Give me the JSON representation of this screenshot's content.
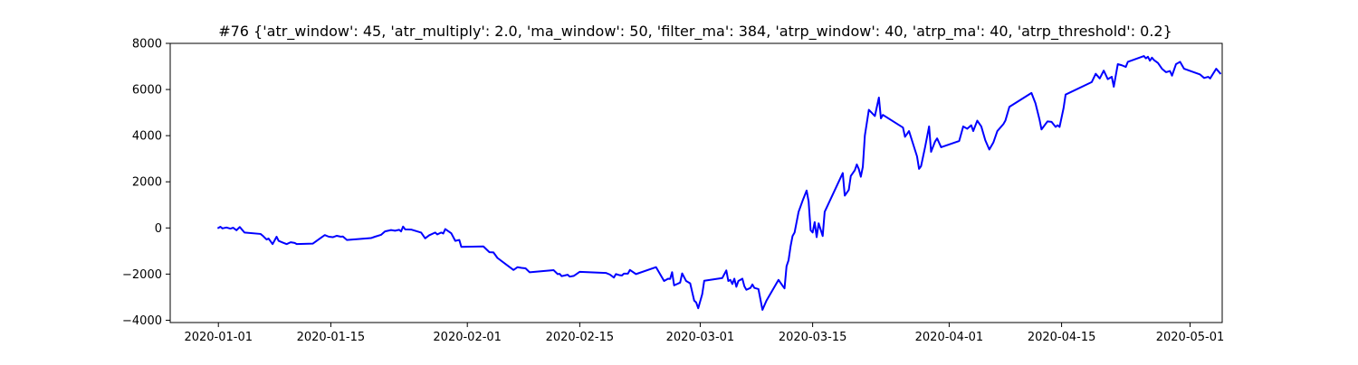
{
  "chart_data": {
    "type": "line",
    "title": "#76 {'atr_window': 45, 'atr_multiply': 2.0, 'ma_window': 50, 'filter_ma': 384, 'atrp_window': 40, 'atrp_ma': 40, 'atrp_threshold': 0.2}",
    "xlabel": "",
    "ylabel": "",
    "x_type": "date",
    "xlim": [
      "2019-12-26",
      "2020-05-05"
    ],
    "ylim": [
      -4100,
      8000
    ],
    "grid": false,
    "legend": "none",
    "x_ticks": [
      {
        "value": "2020-01-01",
        "label": "2020-01-01"
      },
      {
        "value": "2020-01-15",
        "label": "2020-01-15"
      },
      {
        "value": "2020-02-01",
        "label": "2020-02-01"
      },
      {
        "value": "2020-02-15",
        "label": "2020-02-15"
      },
      {
        "value": "2020-03-01",
        "label": "2020-03-01"
      },
      {
        "value": "2020-03-15",
        "label": "2020-03-15"
      },
      {
        "value": "2020-04-01",
        "label": "2020-04-01"
      },
      {
        "value": "2020-04-15",
        "label": "2020-04-15"
      },
      {
        "value": "2020-05-01",
        "label": "2020-05-01"
      }
    ],
    "y_ticks": [
      {
        "value": -4000,
        "label": "−4000"
      },
      {
        "value": -2000,
        "label": "−2000"
      },
      {
        "value": 0,
        "label": "0"
      },
      {
        "value": 2000,
        "label": "2000"
      },
      {
        "value": 4000,
        "label": "4000"
      },
      {
        "value": 6000,
        "label": "6000"
      },
      {
        "value": 8000,
        "label": "8000"
      }
    ],
    "series": [
      {
        "color": "#0000ff",
        "points": [
          [
            "2020-01-01 00:00",
            0
          ],
          [
            "2020-01-01 06:00",
            50
          ],
          [
            "2020-01-01 12:00",
            -20
          ],
          [
            "2020-01-02 00:00",
            20
          ],
          [
            "2020-01-02 12:00",
            -30
          ],
          [
            "2020-01-02 20:00",
            10
          ],
          [
            "2020-01-03 06:00",
            -100
          ],
          [
            "2020-01-03 16:00",
            40
          ],
          [
            "2020-01-04 06:00",
            -200
          ],
          [
            "2020-01-06 06:00",
            -260
          ],
          [
            "2020-01-06 12:00",
            -330
          ],
          [
            "2020-01-07 00:00",
            -500
          ],
          [
            "2020-01-07 06:00",
            -460
          ],
          [
            "2020-01-07 18:00",
            -700
          ],
          [
            "2020-01-08 06:00",
            -380
          ],
          [
            "2020-01-08 12:00",
            -560
          ],
          [
            "2020-01-09 00:00",
            -630
          ],
          [
            "2020-01-09 12:00",
            -700
          ],
          [
            "2020-01-10 00:00",
            -620
          ],
          [
            "2020-01-10 12:00",
            -650
          ],
          [
            "2020-01-10 18:00",
            -700
          ],
          [
            "2020-01-12 18:00",
            -680
          ],
          [
            "2020-01-13 18:00",
            -430
          ],
          [
            "2020-01-14 06:00",
            -310
          ],
          [
            "2020-01-14 18:00",
            -380
          ],
          [
            "2020-01-15 06:00",
            -400
          ],
          [
            "2020-01-15 18:00",
            -340
          ],
          [
            "2020-01-16 06:00",
            -380
          ],
          [
            "2020-01-16 12:00",
            -370
          ],
          [
            "2020-01-17 00:00",
            -520
          ],
          [
            "2020-01-20 00:00",
            -440
          ],
          [
            "2020-01-20 12:00",
            -380
          ],
          [
            "2020-01-21 06:00",
            -300
          ],
          [
            "2020-01-21 18:00",
            -150
          ],
          [
            "2020-01-22 12:00",
            -90
          ],
          [
            "2020-01-23 00:00",
            -120
          ],
          [
            "2020-01-23 12:00",
            -80
          ],
          [
            "2020-01-23 18:00",
            -150
          ],
          [
            "2020-01-24 00:00",
            60
          ],
          [
            "2020-01-24 06:00",
            -60
          ],
          [
            "2020-01-25 00:00",
            -70
          ],
          [
            "2020-01-26 06:00",
            -200
          ],
          [
            "2020-01-26 18:00",
            -450
          ],
          [
            "2020-01-27 06:00",
            -320
          ],
          [
            "2020-01-28 00:00",
            -200
          ],
          [
            "2020-01-28 06:00",
            -280
          ],
          [
            "2020-01-28 18:00",
            -200
          ],
          [
            "2020-01-29 00:00",
            -240
          ],
          [
            "2020-01-29 06:00",
            -50
          ],
          [
            "2020-01-30 00:00",
            -230
          ],
          [
            "2020-01-30 12:00",
            -560
          ],
          [
            "2020-01-31 00:00",
            -520
          ],
          [
            "2020-01-31 06:00",
            -820
          ],
          [
            "2020-02-03 00:00",
            -800
          ],
          [
            "2020-02-03 18:00",
            -1050
          ],
          [
            "2020-02-04 06:00",
            -1060
          ],
          [
            "2020-02-04 18:00",
            -1300
          ],
          [
            "2020-02-05 18:00",
            -1560
          ],
          [
            "2020-02-06 18:00",
            -1820
          ],
          [
            "2020-02-07 06:00",
            -1700
          ],
          [
            "2020-02-07 18:00",
            -1730
          ],
          [
            "2020-02-08 06:00",
            -1750
          ],
          [
            "2020-02-08 18:00",
            -1920
          ],
          [
            "2020-02-11 18:00",
            -1830
          ],
          [
            "2020-02-12 06:00",
            -2000
          ],
          [
            "2020-02-12 12:00",
            -1990
          ],
          [
            "2020-02-12 18:00",
            -2090
          ],
          [
            "2020-02-13 06:00",
            -2050
          ],
          [
            "2020-02-13 12:00",
            -2030
          ],
          [
            "2020-02-13 18:00",
            -2110
          ],
          [
            "2020-02-14 06:00",
            -2080
          ],
          [
            "2020-02-15 00:00",
            -1900
          ],
          [
            "2020-02-18 06:00",
            -1950
          ],
          [
            "2020-02-18 18:00",
            -2020
          ],
          [
            "2020-02-19 06:00",
            -2150
          ],
          [
            "2020-02-19 12:00",
            -2000
          ],
          [
            "2020-02-20 00:00",
            -2050
          ],
          [
            "2020-02-20 06:00",
            -2060
          ],
          [
            "2020-02-20 12:00",
            -1980
          ],
          [
            "2020-02-21 00:00",
            -1980
          ],
          [
            "2020-02-21 06:00",
            -1820
          ],
          [
            "2020-02-22 00:00",
            -2000
          ],
          [
            "2020-02-24 12:00",
            -1700
          ],
          [
            "2020-02-25 12:00",
            -2300
          ],
          [
            "2020-02-26 00:00",
            -2200
          ],
          [
            "2020-02-26 06:00",
            -2210
          ],
          [
            "2020-02-26 12:00",
            -1920
          ],
          [
            "2020-02-26 18:00",
            -2490
          ],
          [
            "2020-02-27 12:00",
            -2370
          ],
          [
            "2020-02-27 18:00",
            -1970
          ],
          [
            "2020-02-28 06:00",
            -2300
          ],
          [
            "2020-02-28 18:00",
            -2400
          ],
          [
            "2020-02-29 06:00",
            -3150
          ],
          [
            "2020-02-29 12:00",
            -3230
          ],
          [
            "2020-02-29 18:00",
            -3480
          ],
          [
            "2020-03-01 06:00",
            -2870
          ],
          [
            "2020-03-01 12:00",
            -2290
          ],
          [
            "2020-03-03 18:00",
            -2170
          ],
          [
            "2020-03-04 06:00",
            -1840
          ],
          [
            "2020-03-04 12:00",
            -2300
          ],
          [
            "2020-03-04 18:00",
            -2250
          ],
          [
            "2020-03-05 00:00",
            -2430
          ],
          [
            "2020-03-05 06:00",
            -2200
          ],
          [
            "2020-03-05 12:00",
            -2550
          ],
          [
            "2020-03-05 18:00",
            -2300
          ],
          [
            "2020-03-06 06:00",
            -2200
          ],
          [
            "2020-03-06 12:00",
            -2530
          ],
          [
            "2020-03-06 18:00",
            -2680
          ],
          [
            "2020-03-07 06:00",
            -2600
          ],
          [
            "2020-03-07 12:00",
            -2450
          ],
          [
            "2020-03-07 18:00",
            -2600
          ],
          [
            "2020-03-08 06:00",
            -2650
          ],
          [
            "2020-03-08 12:00",
            -3100
          ],
          [
            "2020-03-08 18:00",
            -3550
          ],
          [
            "2020-03-09 06:00",
            -3150
          ],
          [
            "2020-03-10 18:00",
            -2250
          ],
          [
            "2020-03-11 06:00",
            -2500
          ],
          [
            "2020-03-11 12:00",
            -2620
          ],
          [
            "2020-03-11 18:00",
            -1660
          ],
          [
            "2020-03-12 00:00",
            -1400
          ],
          [
            "2020-03-12 06:00",
            -800
          ],
          [
            "2020-03-12 12:00",
            -350
          ],
          [
            "2020-03-12 18:00",
            -200
          ],
          [
            "2020-03-13 06:00",
            700
          ],
          [
            "2020-03-13 18:00",
            1180
          ],
          [
            "2020-03-14 06:00",
            1620
          ],
          [
            "2020-03-14 12:00",
            1150
          ],
          [
            "2020-03-14 18:00",
            -100
          ],
          [
            "2020-03-15 00:00",
            -200
          ],
          [
            "2020-03-15 06:00",
            250
          ],
          [
            "2020-03-15 12:00",
            -400
          ],
          [
            "2020-03-15 18:00",
            200
          ],
          [
            "2020-03-16 06:00",
            -350
          ],
          [
            "2020-03-16 12:00",
            700
          ],
          [
            "2020-03-18 18:00",
            2380
          ],
          [
            "2020-03-19 00:00",
            1400
          ],
          [
            "2020-03-19 12:00",
            1650
          ],
          [
            "2020-03-19 18:00",
            2250
          ],
          [
            "2020-03-20 06:00",
            2500
          ],
          [
            "2020-03-20 12:00",
            2750
          ],
          [
            "2020-03-20 18:00",
            2550
          ],
          [
            "2020-03-21 00:00",
            2220
          ],
          [
            "2020-03-21 06:00",
            2650
          ],
          [
            "2020-03-21 12:00",
            4000
          ],
          [
            "2020-03-22 00:00",
            5120
          ],
          [
            "2020-03-22 18:00",
            4850
          ],
          [
            "2020-03-23 06:00",
            5650
          ],
          [
            "2020-03-23 12:00",
            4750
          ],
          [
            "2020-03-23 18:00",
            4900
          ],
          [
            "2020-03-26 06:00",
            4350
          ],
          [
            "2020-03-26 12:00",
            3950
          ],
          [
            "2020-03-27 00:00",
            4200
          ],
          [
            "2020-03-28 00:00",
            3100
          ],
          [
            "2020-03-28 06:00",
            2560
          ],
          [
            "2020-03-28 12:00",
            2680
          ],
          [
            "2020-03-29 00:00",
            3500
          ],
          [
            "2020-03-29 12:00",
            4400
          ],
          [
            "2020-03-29 18:00",
            3300
          ],
          [
            "2020-03-30 06:00",
            3750
          ],
          [
            "2020-03-30 12:00",
            3880
          ],
          [
            "2020-03-31 00:00",
            3500
          ],
          [
            "2020-04-02 06:00",
            3770
          ],
          [
            "2020-04-02 18:00",
            4400
          ],
          [
            "2020-04-03 06:00",
            4300
          ],
          [
            "2020-04-03 18:00",
            4450
          ],
          [
            "2020-04-04 00:00",
            4200
          ],
          [
            "2020-04-04 12:00",
            4650
          ],
          [
            "2020-04-05 00:00",
            4400
          ],
          [
            "2020-04-05 12:00",
            3800
          ],
          [
            "2020-04-06 00:00",
            3400
          ],
          [
            "2020-04-06 12:00",
            3700
          ],
          [
            "2020-04-07 00:00",
            4200
          ],
          [
            "2020-04-07 18:00",
            4500
          ],
          [
            "2020-04-08 00:00",
            4650
          ],
          [
            "2020-04-08 12:00",
            5250
          ],
          [
            "2020-04-11 06:00",
            5850
          ],
          [
            "2020-04-11 18:00",
            5400
          ],
          [
            "2020-04-12 06:00",
            4700
          ],
          [
            "2020-04-12 12:00",
            4270
          ],
          [
            "2020-04-13 06:00",
            4620
          ],
          [
            "2020-04-13 18:00",
            4600
          ],
          [
            "2020-04-14 06:00",
            4380
          ],
          [
            "2020-04-14 12:00",
            4450
          ],
          [
            "2020-04-14 18:00",
            4380
          ],
          [
            "2020-04-15 06:00",
            5200
          ],
          [
            "2020-04-15 12:00",
            5780
          ],
          [
            "2020-04-18 18:00",
            6320
          ],
          [
            "2020-04-19 06:00",
            6680
          ],
          [
            "2020-04-19 18:00",
            6480
          ],
          [
            "2020-04-20 06:00",
            6820
          ],
          [
            "2020-04-20 18:00",
            6450
          ],
          [
            "2020-04-21 06:00",
            6550
          ],
          [
            "2020-04-21 12:00",
            6120
          ],
          [
            "2020-04-22 00:00",
            7100
          ],
          [
            "2020-04-22 12:00",
            7050
          ],
          [
            "2020-04-23 00:00",
            6980
          ],
          [
            "2020-04-23 06:00",
            7200
          ],
          [
            "2020-04-25 06:00",
            7450
          ],
          [
            "2020-04-25 12:00",
            7350
          ],
          [
            "2020-04-25 18:00",
            7420
          ],
          [
            "2020-04-26 00:00",
            7250
          ],
          [
            "2020-04-26 06:00",
            7380
          ],
          [
            "2020-04-26 12:00",
            7280
          ],
          [
            "2020-04-27 00:00",
            7150
          ],
          [
            "2020-04-27 12:00",
            6900
          ],
          [
            "2020-04-28 00:00",
            6750
          ],
          [
            "2020-04-28 12:00",
            6800
          ],
          [
            "2020-04-28 18:00",
            6600
          ],
          [
            "2020-04-29 06:00",
            7100
          ],
          [
            "2020-04-29 18:00",
            7200
          ],
          [
            "2020-04-30 06:00",
            6900
          ],
          [
            "2020-05-02 06:00",
            6650
          ],
          [
            "2020-05-02 18:00",
            6500
          ],
          [
            "2020-05-03 06:00",
            6550
          ],
          [
            "2020-05-03 12:00",
            6480
          ],
          [
            "2020-05-04 06:00",
            6900
          ],
          [
            "2020-05-04 18:00",
            6700
          ]
        ]
      }
    ]
  }
}
